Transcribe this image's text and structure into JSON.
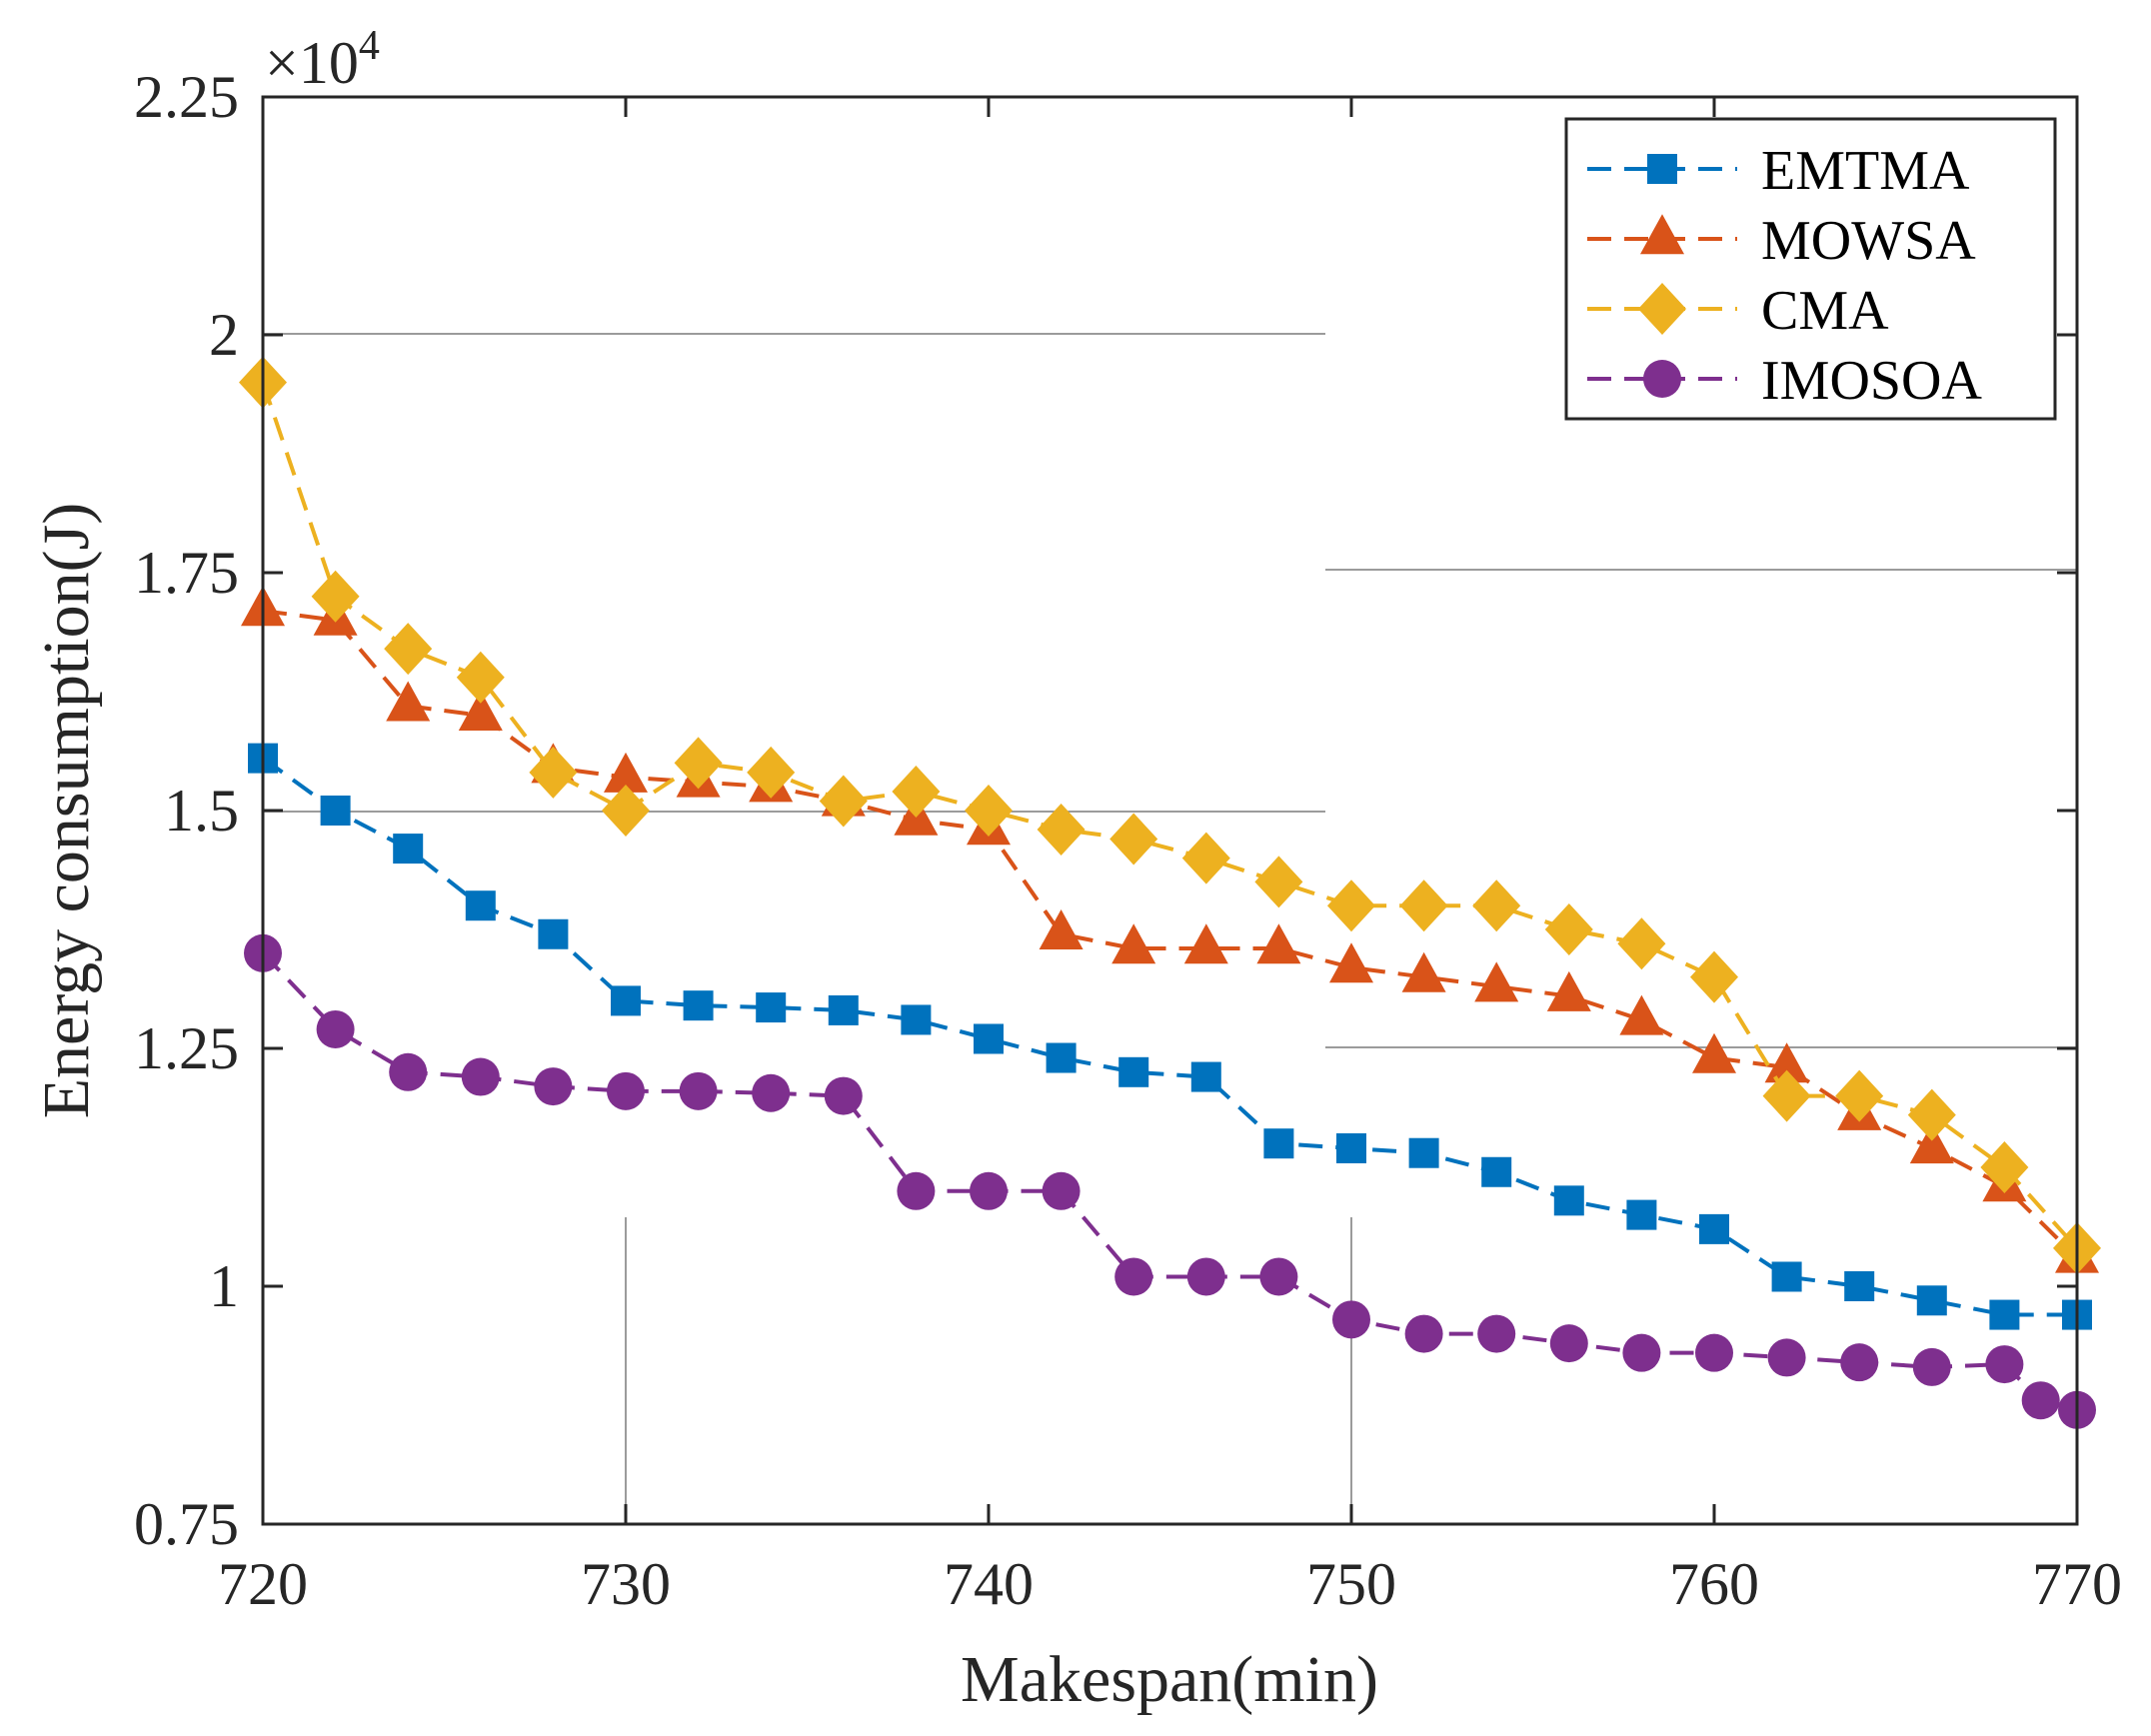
{
  "chart_data": {
    "type": "line",
    "xlabel": "Makespan(min)",
    "ylabel": "Energy consumption(J)",
    "y_multiplier": {
      "base": "×10",
      "exponent": "4"
    },
    "xlim": [
      720,
      770
    ],
    "ylim": [
      0.75,
      2.25
    ],
    "x_ticks": [
      720,
      730,
      740,
      750,
      760,
      770
    ],
    "x_tick_labels": [
      "720",
      "730",
      "740",
      "750",
      "760",
      "770"
    ],
    "y_ticks": [
      0.75,
      1.0,
      1.25,
      1.5,
      1.75,
      2.0,
      2.25
    ],
    "y_tick_labels": [
      "0.75",
      "1",
      "1.25",
      "1.5",
      "1.75",
      "2",
      "2.25"
    ],
    "legend_position": "top-right",
    "series": [
      {
        "name": "EMTMA",
        "color": "#0072BD",
        "marker": "square",
        "x": [
          720,
          722,
          724,
          726,
          728,
          730,
          732,
          734,
          736,
          738,
          740,
          742,
          744,
          746,
          748,
          750,
          752,
          754,
          756,
          758,
          760,
          762,
          764,
          766,
          768,
          770
        ],
        "y": [
          1.555,
          1.5,
          1.46,
          1.4,
          1.37,
          1.3,
          1.295,
          1.293,
          1.29,
          1.28,
          1.26,
          1.24,
          1.225,
          1.22,
          1.15,
          1.145,
          1.14,
          1.12,
          1.09,
          1.075,
          1.06,
          1.01,
          1.0,
          0.985,
          0.97,
          0.97
        ]
      },
      {
        "name": "MOWSA",
        "color": "#D95319",
        "marker": "triangle",
        "x": [
          720,
          722,
          724,
          726,
          728,
          730,
          732,
          734,
          736,
          738,
          740,
          742,
          744,
          746,
          748,
          750,
          752,
          754,
          756,
          758,
          760,
          762,
          764,
          766,
          768,
          770
        ],
        "y": [
          1.71,
          1.7,
          1.61,
          1.6,
          1.545,
          1.535,
          1.53,
          1.525,
          1.51,
          1.49,
          1.48,
          1.37,
          1.355,
          1.355,
          1.355,
          1.335,
          1.325,
          1.315,
          1.305,
          1.28,
          1.24,
          1.23,
          1.18,
          1.145,
          1.105,
          1.03
        ]
      },
      {
        "name": "CMA",
        "color": "#EDB120",
        "marker": "diamond",
        "x": [
          720,
          722,
          724,
          726,
          728,
          730,
          732,
          734,
          736,
          738,
          740,
          742,
          744,
          746,
          748,
          750,
          752,
          754,
          756,
          758,
          760,
          762,
          764,
          766,
          768,
          770
        ],
        "y": [
          1.95,
          1.725,
          1.67,
          1.64,
          1.54,
          1.5,
          1.55,
          1.54,
          1.51,
          1.52,
          1.5,
          1.48,
          1.47,
          1.45,
          1.425,
          1.4,
          1.4,
          1.4,
          1.375,
          1.36,
          1.325,
          1.2,
          1.2,
          1.18,
          1.125,
          1.04
        ]
      },
      {
        "name": "IMOSOA",
        "color": "#7E2F8E",
        "marker": "circle",
        "x": [
          720,
          722,
          724,
          726,
          728,
          730,
          732,
          734,
          736,
          738,
          740,
          742,
          744,
          746,
          748,
          750,
          752,
          754,
          756,
          758,
          760,
          762,
          764,
          766,
          768,
          769,
          770
        ],
        "y": [
          1.35,
          1.27,
          1.225,
          1.22,
          1.21,
          1.205,
          1.205,
          1.203,
          1.2,
          1.1,
          1.1,
          1.1,
          1.01,
          1.01,
          1.01,
          0.965,
          0.95,
          0.95,
          0.94,
          0.93,
          0.93,
          0.925,
          0.92,
          0.915,
          0.918,
          0.88,
          0.87
        ]
      }
    ]
  }
}
